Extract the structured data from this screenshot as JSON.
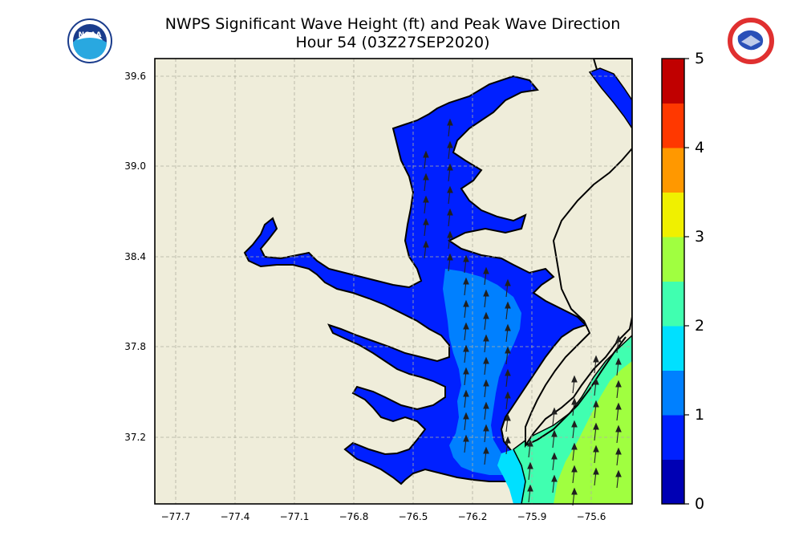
{
  "title": {
    "line1": "NWPS Significant Wave Height (ft) and Peak Wave Direction",
    "line2": "Hour 54 (03Z27SEP2020)"
  },
  "logos": {
    "left": "NOAA",
    "right": "NATIONAL WEATHER SERVICE"
  },
  "map": {
    "lat_ticks": [
      "39.6",
      "39.0",
      "38.4",
      "37.8",
      "37.2"
    ],
    "lon_ticks": [
      "−77.7",
      "−77.4",
      "−77.1",
      "−76.8",
      "−76.5",
      "−76.2",
      "−75.9",
      "−75.6"
    ],
    "land_color": "#efedda",
    "grid": true
  },
  "colorbar": {
    "tick_labels": [
      "0",
      "1",
      "2",
      "3",
      "4",
      "5"
    ],
    "colors": [
      "#0000b4",
      "#0020ff",
      "#0080ff",
      "#00e0ff",
      "#40ffb0",
      "#a0ff40",
      "#f0f000",
      "#ff9800",
      "#ff3800",
      "#c00000"
    ]
  }
}
